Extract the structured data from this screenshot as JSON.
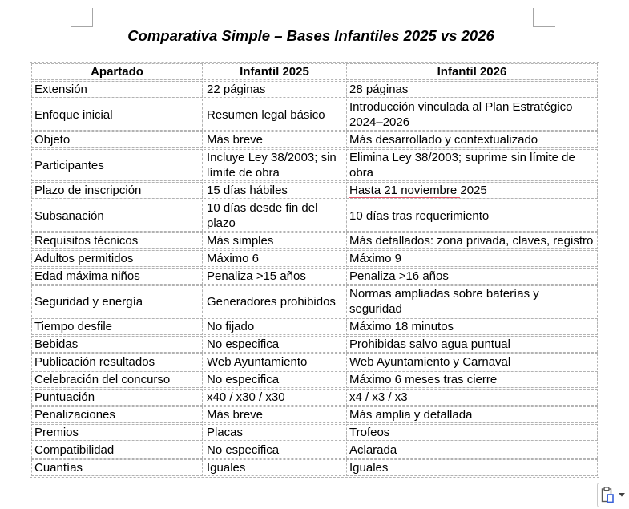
{
  "title": "Comparativa Simple – Bases Infantiles 2025 vs 2026",
  "table": {
    "headers": [
      "Apartado",
      "Infantil 2025",
      "Infantil 2026"
    ],
    "rows": [
      [
        "Extensión",
        "22 páginas",
        "28 páginas"
      ],
      [
        "Enfoque inicial",
        "Resumen legal básico",
        "Introducción vinculada al Plan Estratégico 2024–2026"
      ],
      [
        "Objeto",
        "Más breve",
        "Más desarrollado y contextualizado"
      ],
      [
        "Participantes",
        "Incluye Ley 38/2003; sin límite de obra",
        "Elimina Ley 38/2003; suprime sin límite de obra"
      ],
      [
        "Plazo de inscripción",
        "15 días hábiles",
        "Hasta 21 noviembre 2025"
      ],
      [
        "Subsanación",
        "10 días desde fin del plazo",
        "10 días tras requerimiento"
      ],
      [
        "Requisitos técnicos",
        "Más simples",
        "Más detallados: zona privada, claves, registro"
      ],
      [
        "Adultos permitidos",
        "Máximo 6",
        "Máximo 9"
      ],
      [
        "Edad máxima niños",
        "Penaliza >15 años",
        "Penaliza >16 años"
      ],
      [
        "Seguridad y energía",
        "Generadores prohibidos",
        "Normas ampliadas sobre baterías y seguridad"
      ],
      [
        "Tiempo desfile",
        "No fijado",
        "Máximo 18 minutos"
      ],
      [
        "Bebidas",
        "No especifica",
        "Prohibidas salvo agua puntual"
      ],
      [
        "Publicación resultados",
        "Web Ayuntamiento",
        "Web Ayuntamiento y Carnaval"
      ],
      [
        "Celebración del concurso",
        "No especifica",
        "Máximo 6 meses tras cierre"
      ],
      [
        "Puntuación",
        "x40 / x30 / x30",
        "x4 / x3 / x3"
      ],
      [
        "Penalizaciones",
        "Más breve",
        "Más amplia y detallada"
      ],
      [
        "Premios",
        "Placas",
        "Trofeos"
      ],
      [
        "Compatibilidad",
        "No especifica",
        "Aclarada"
      ],
      [
        "Cuantías",
        "Iguales",
        "Iguales"
      ]
    ],
    "grammar_mark": {
      "row_index": 4,
      "col_index": 2,
      "underlined_text": "Hasta 21 noviembre ",
      "rest_text": "2025",
      "color": "#e8566a"
    }
  },
  "paste_button": {
    "icon": "clipboard-paste-icon",
    "dropdown": "chevron-down-icon"
  },
  "colors": {
    "grid_border": "#b3b3b3",
    "crop_mark": "#a6a6a6",
    "grammar_underline": "#e8566a",
    "paste_icon_gray": "#595959",
    "paste_icon_blue": "#3a62d8",
    "button_border": "#c9c9c9"
  }
}
